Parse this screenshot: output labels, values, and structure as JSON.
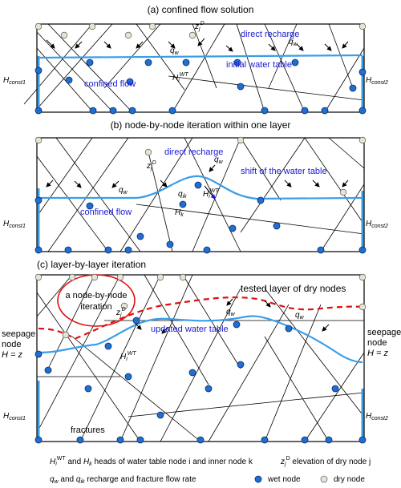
{
  "panels": {
    "a": {
      "title": "(a) confined flow solution",
      "labels": {
        "zD_base": "z",
        "zD_sub": "j",
        "zD_sup": "D",
        "qw_base": "q",
        "qw_sub": "w",
        "direct_recharge": "direct recharge",
        "initial_water_table": "initial water table",
        "confined_flow": "confined flow",
        "HWT_base": "H",
        "HWT_sub": "i",
        "HWT_sup": "WT",
        "Hconst1_base": "H",
        "Hconst1_sub": "const1",
        "Hconst2_base": "H",
        "Hconst2_sub": "const2"
      }
    },
    "b": {
      "title": "(b) node-by-node iteration within one layer",
      "labels": {
        "zD_base": "z",
        "zD_sub": "j",
        "zD_sup": "D",
        "direct_recharge": "direct recharge",
        "qw_base": "q",
        "qw_sub": "w",
        "shift": "shift of the water table",
        "qik_base": "q",
        "qik_sub": "ik",
        "HWT_base": "H",
        "HWT_sub": "i",
        "HWT_sup": "WT",
        "Hk_base": "H",
        "Hk_sub": "k",
        "confined_flow": "confined flow",
        "Hconst1_base": "H",
        "Hconst1_sub": "const1",
        "Hconst2_base": "H",
        "Hconst2_sub": "const2"
      }
    },
    "c": {
      "title": "(c) layer-by-layer iteration",
      "labels": {
        "node_by_node_line1": "a node-by-node",
        "node_by_node_line2": "iteration",
        "tested_layer": "tested layer of dry nodes",
        "zD_base": "z",
        "zD_sub": "j",
        "zD_sup": "D",
        "qw_base": "q",
        "qw_sub": "w",
        "seepage_left_1": "seepage",
        "seepage_left_2": "node",
        "seepage_left_3": "H = z",
        "seepage_right_1": "seepage",
        "seepage_right_2": "node",
        "seepage_right_3": "H = z",
        "updated_water_table": "updated water table",
        "HWT_base": "H",
        "HWT_sub": "i",
        "HWT_sup": "WT",
        "Hconst1_base": "H",
        "Hconst1_sub": "const1",
        "Hconst2_base": "H",
        "Hconst2_sub": "const2",
        "fractures": "fractures"
      }
    }
  },
  "legend": {
    "heads_H1": "H",
    "heads_H1_sub": "i",
    "heads_H1_sup": "WT",
    "heads_and": " and ",
    "heads_H2": "H",
    "heads_H2_sub": "k",
    "heads_text": " heads of water table node i and inner node k",
    "elev_z": "z",
    "elev_sub": "j",
    "elev_sup": "D",
    "elev_text": " elevation of dry node j",
    "rates_q1": "q",
    "rates_q1_sub": "w",
    "rates_and": " and ",
    "rates_q2": "q",
    "rates_q2_sub": "ik",
    "rates_text": "  recharge and fracture flow rate",
    "wet_node": "wet node",
    "dry_node": "dry node"
  },
  "colors": {
    "water_table": "#3a9de8",
    "wet_node": "#1f6fd1",
    "dry_node": "#e6e4d6",
    "label_blue": "#1a1ad6",
    "tested_layer": "#e01010"
  }
}
